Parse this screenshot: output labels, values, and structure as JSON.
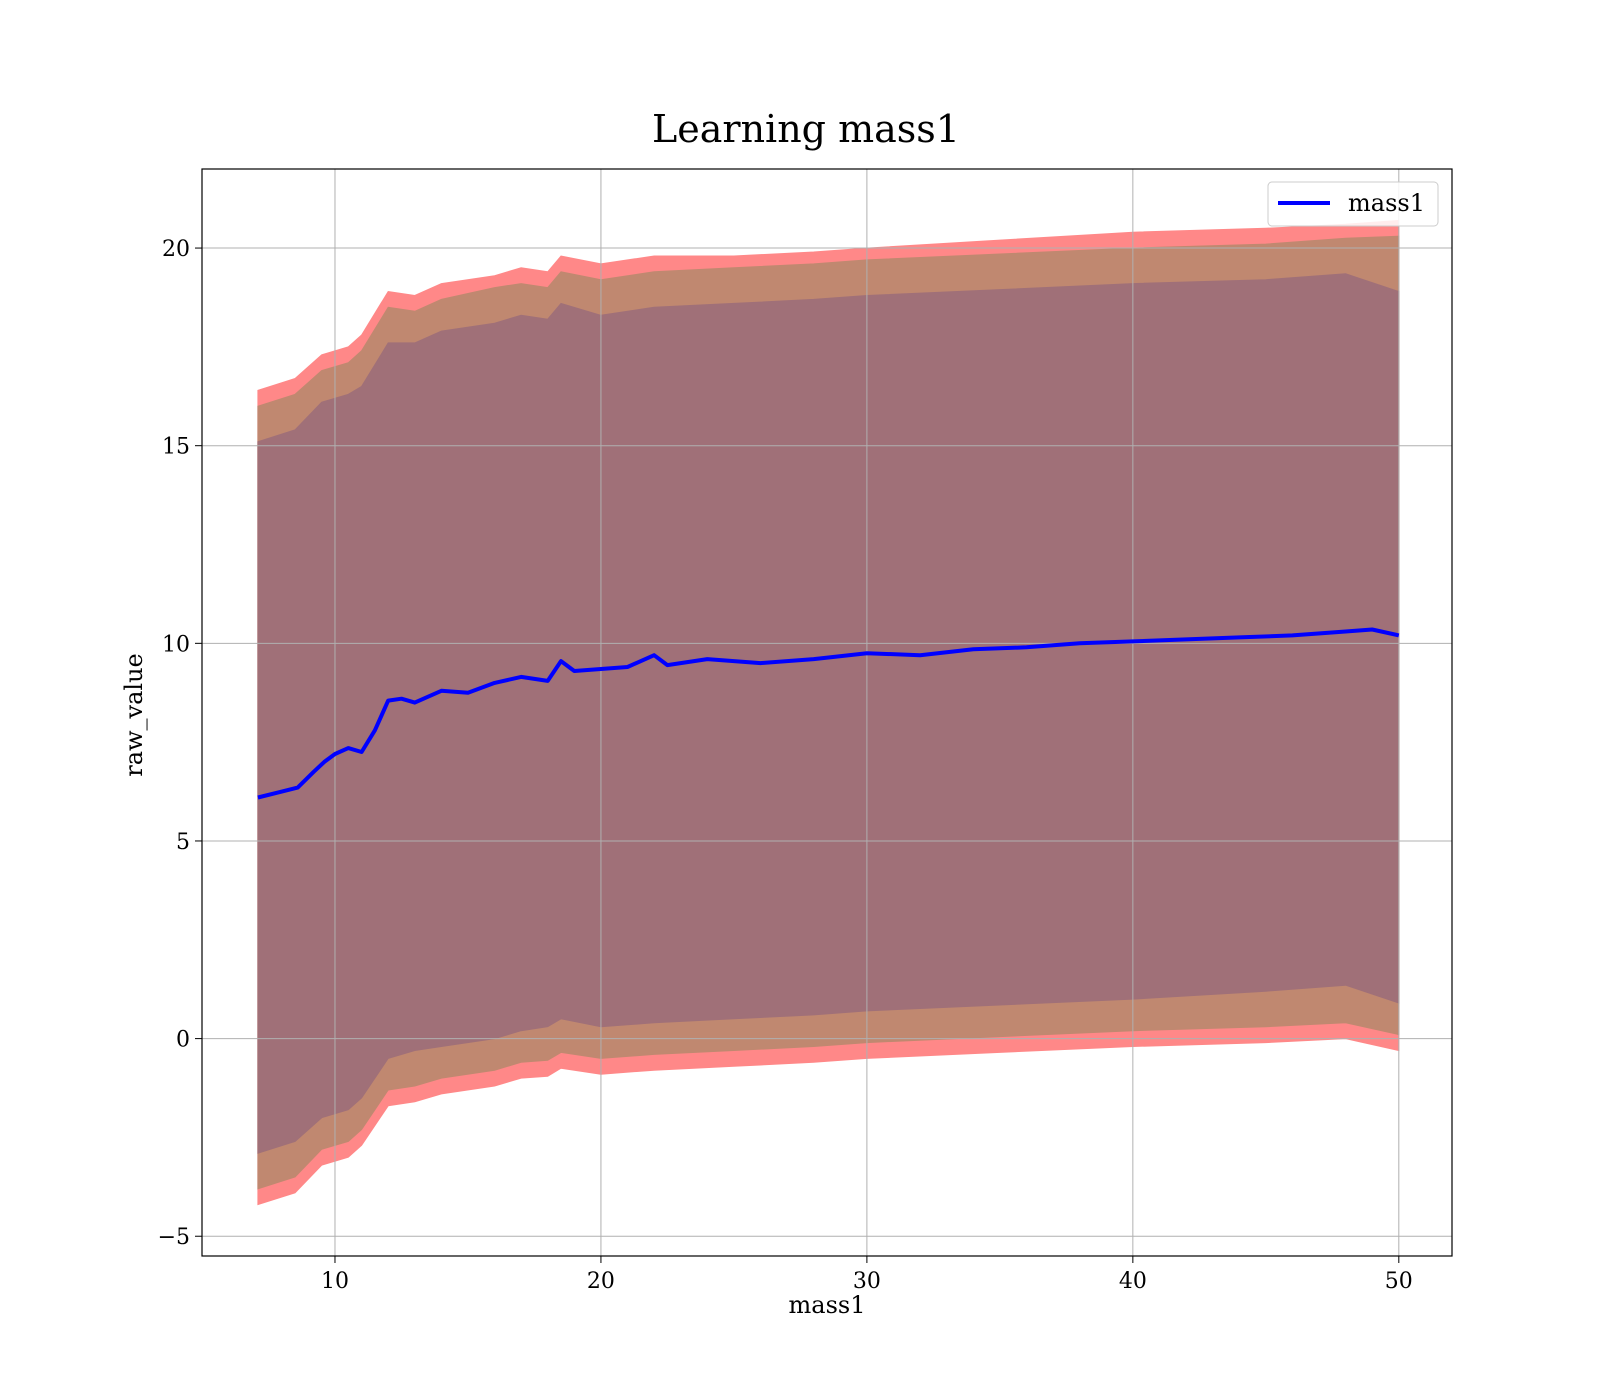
{
  "chart_data": {
    "type": "line",
    "title": "Learning mass1",
    "xlabel": "mass1",
    "ylabel": "raw_value",
    "xlim": [
      5,
      52
    ],
    "ylim": [
      -5.5,
      22
    ],
    "xticks": [
      10,
      20,
      30,
      40,
      50
    ],
    "yticks": [
      -5,
      0,
      5,
      10,
      15,
      20
    ],
    "xtick_labels": [
      "10",
      "20",
      "30",
      "40",
      "50"
    ],
    "ytick_labels": [
      "−5",
      "0",
      "5",
      "10",
      "15",
      "20"
    ],
    "grid": true,
    "legend_position": "top-right",
    "series": [
      {
        "name": "mass1",
        "color": "#0000ff",
        "x": [
          7.1,
          8.0,
          8.6,
          9.2,
          9.6,
          10.0,
          10.5,
          11.0,
          11.5,
          12.0,
          12.5,
          13.0,
          13.5,
          14.0,
          15.0,
          16.0,
          17.0,
          18.0,
          18.5,
          19.0,
          20.0,
          21.0,
          22.0,
          22.5,
          24.0,
          26.0,
          28.0,
          30.0,
          32.0,
          34.0,
          36.0,
          38.0,
          40.0,
          42.0,
          44.0,
          46.0,
          48.0,
          49.0,
          50.0
        ],
        "y": [
          6.1,
          6.25,
          6.35,
          6.75,
          7.0,
          7.2,
          7.35,
          7.25,
          7.8,
          8.55,
          8.6,
          8.5,
          8.65,
          8.8,
          8.75,
          9.0,
          9.15,
          9.05,
          9.55,
          9.3,
          9.35,
          9.4,
          9.7,
          9.45,
          9.6,
          9.5,
          9.6,
          9.75,
          9.7,
          9.85,
          9.9,
          10.0,
          10.05,
          10.1,
          10.15,
          10.2,
          10.3,
          10.35,
          10.2
        ]
      }
    ],
    "bands": [
      {
        "color": "#ff8888",
        "x": [
          7.1,
          8.5,
          9.5,
          10.5,
          11.0,
          12.0,
          13.0,
          14.0,
          16.0,
          17.0,
          18.0,
          18.5,
          20.0,
          22.0,
          25.0,
          28.0,
          30.0,
          35.0,
          40.0,
          45.0,
          48.0,
          50.0
        ],
        "upper": [
          16.4,
          16.7,
          17.3,
          17.5,
          17.8,
          18.9,
          18.8,
          19.1,
          19.3,
          19.5,
          19.4,
          19.8,
          19.6,
          19.8,
          19.8,
          19.9,
          20.0,
          20.2,
          20.4,
          20.5,
          20.6,
          20.7
        ],
        "lower": [
          -4.2,
          -3.9,
          -3.2,
          -3.0,
          -2.7,
          -1.7,
          -1.6,
          -1.4,
          -1.2,
          -1.0,
          -0.95,
          -0.75,
          -0.9,
          -0.8,
          -0.7,
          -0.6,
          -0.5,
          -0.35,
          -0.2,
          -0.1,
          0.0,
          -0.3
        ]
      },
      {
        "color": "#c08870",
        "x": [
          7.1,
          8.5,
          9.5,
          10.5,
          11.0,
          12.0,
          13.0,
          14.0,
          16.0,
          17.0,
          18.0,
          18.5,
          20.0,
          22.0,
          25.0,
          28.0,
          30.0,
          35.0,
          40.0,
          45.0,
          48.0,
          50.0
        ],
        "upper": [
          16.0,
          16.3,
          16.9,
          17.1,
          17.4,
          18.5,
          18.4,
          18.7,
          19.0,
          19.1,
          19.0,
          19.4,
          19.2,
          19.4,
          19.5,
          19.6,
          19.7,
          19.85,
          20.0,
          20.1,
          20.25,
          20.3
        ],
        "lower": [
          -3.8,
          -3.5,
          -2.8,
          -2.6,
          -2.3,
          -1.3,
          -1.2,
          -1.0,
          -0.8,
          -0.6,
          -0.55,
          -0.35,
          -0.5,
          -0.4,
          -0.3,
          -0.2,
          -0.1,
          0.05,
          0.2,
          0.3,
          0.4,
          0.1
        ]
      },
      {
        "color": "#a07078",
        "x": [
          7.1,
          8.5,
          9.5,
          10.5,
          11.0,
          12.0,
          13.0,
          14.0,
          16.0,
          17.0,
          18.0,
          18.5,
          20.0,
          22.0,
          25.0,
          28.0,
          30.0,
          35.0,
          40.0,
          45.0,
          48.0,
          50.0
        ],
        "upper": [
          15.1,
          15.4,
          16.1,
          16.3,
          16.5,
          17.6,
          17.6,
          17.9,
          18.1,
          18.3,
          18.2,
          18.6,
          18.3,
          18.5,
          18.6,
          18.7,
          18.8,
          18.95,
          19.1,
          19.2,
          19.35,
          18.9
        ],
        "lower": [
          -2.9,
          -2.6,
          -2.0,
          -1.8,
          -1.5,
          -0.5,
          -0.3,
          -0.2,
          0.0,
          0.2,
          0.3,
          0.5,
          0.3,
          0.4,
          0.5,
          0.6,
          0.7,
          0.85,
          1.0,
          1.2,
          1.35,
          0.9
        ]
      }
    ]
  }
}
